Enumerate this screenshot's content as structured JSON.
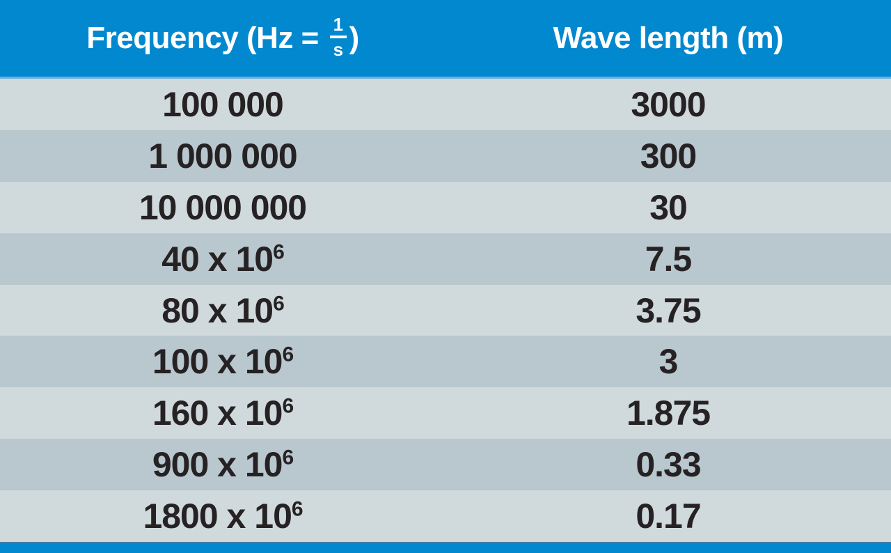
{
  "header": {
    "frequency": {
      "prefix": "Frequency (Hz = ",
      "frac_num": "1",
      "frac_den": "s",
      "suffix": ")"
    },
    "wavelength": "Wave length (m)"
  },
  "rows": [
    {
      "freq": "100 000",
      "exp": "",
      "wave": "3000"
    },
    {
      "freq": "1 000 000",
      "exp": "",
      "wave": "300"
    },
    {
      "freq": "10 000 000",
      "exp": "",
      "wave": "30"
    },
    {
      "freq": "40 x 10",
      "exp": "6",
      "wave": "7.5"
    },
    {
      "freq": "80 x 10",
      "exp": "6",
      "wave": "3.75"
    },
    {
      "freq": "100 x 10",
      "exp": "6",
      "wave": "3"
    },
    {
      "freq": "160 x 10",
      "exp": "6",
      "wave": "1.875"
    },
    {
      "freq": "900 x 10",
      "exp": "6",
      "wave": "0.33"
    },
    {
      "freq": "1800 x 10",
      "exp": "6",
      "wave": "0.17"
    }
  ],
  "colors": {
    "accent_blue": "#0288cf",
    "row_light": "#d0d9dc",
    "row_dark": "#b9c7ce",
    "text_dark": "#262224",
    "header_text": "#ffffff"
  },
  "chart_data": {
    "type": "table",
    "title": "Frequency vs wave length",
    "columns": [
      "Frequency (Hz = 1/s)",
      "Wave length (m)"
    ],
    "rows": [
      [
        "100 000",
        "3000"
      ],
      [
        "1 000 000",
        "300"
      ],
      [
        "10 000 000",
        "30"
      ],
      [
        "40 x 10^6",
        "7.5"
      ],
      [
        "80 x 10^6",
        "3.75"
      ],
      [
        "100 x 10^6",
        "3"
      ],
      [
        "160 x 10^6",
        "1.875"
      ],
      [
        "900 x 10^6",
        "0.33"
      ],
      [
        "1800 x 10^6",
        "0.17"
      ]
    ],
    "frequencies_hz": [
      100000,
      1000000,
      10000000,
      40000000,
      80000000,
      100000000,
      160000000,
      900000000,
      1800000000
    ],
    "wavelengths_m": [
      3000,
      300,
      30,
      7.5,
      3.75,
      3,
      1.875,
      0.33,
      0.17
    ]
  }
}
